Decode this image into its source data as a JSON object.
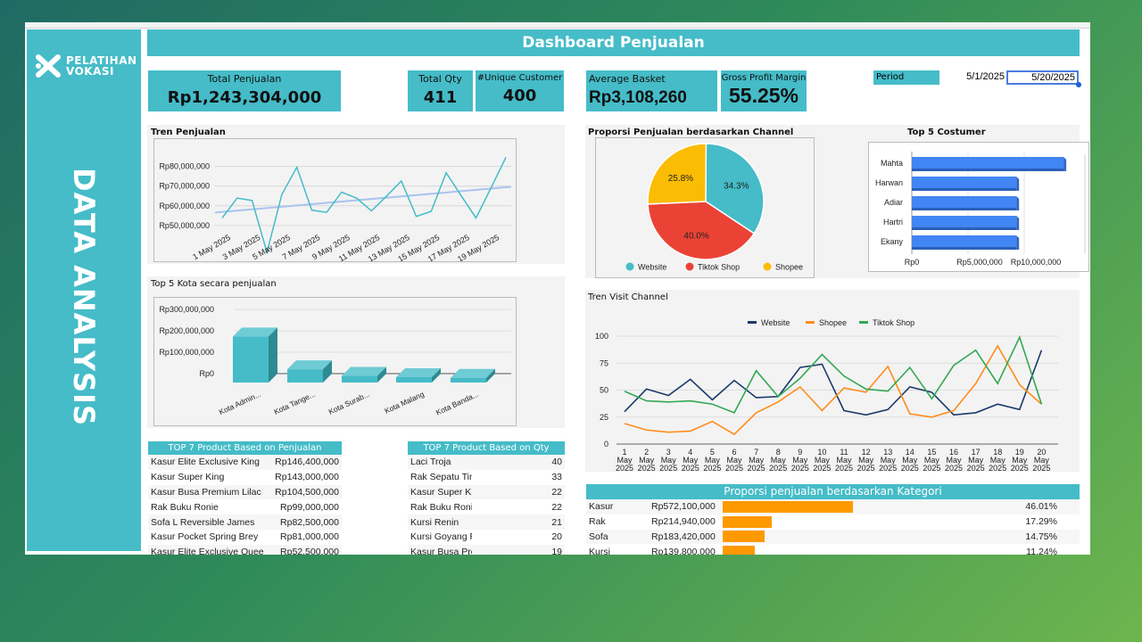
{
  "sidebar": {
    "logo_text_1": "PELATIHAN",
    "logo_text_2": "VOKASI",
    "vertical_title": "DATA ANALYSIS"
  },
  "header": {
    "title": "Dashboard Penjualan"
  },
  "kpis": {
    "total_penjualan": {
      "label": "Total Penjualan",
      "value": "Rp1,243,304,000"
    },
    "total_qty": {
      "label": "Total Qty",
      "value": "411"
    },
    "unique_customer": {
      "label": "#Unique Customer",
      "value": "400"
    },
    "average_basket": {
      "label": "Average Basket",
      "value": "Rp3,108,260"
    },
    "gross_profit_margin": {
      "label": "Gross Profit Margin",
      "value": "55.25%"
    }
  },
  "period": {
    "label": "Period",
    "start": "5/1/2025",
    "end": "5/20/2025"
  },
  "colors": {
    "teal": "#45bcc8",
    "website": "#45bcc8",
    "tiktok": "#ea4335",
    "shopee": "#fbbc04",
    "bar_blue": "#4285f4",
    "navy": "#1a3a6b",
    "orange": "#ff8c1a",
    "green": "#34a853",
    "category_bar": "#ff9900"
  },
  "chart_data": [
    {
      "id": "tren_penjualan",
      "type": "line",
      "title": "Tren Penjualan",
      "trendline": true,
      "x": [
        "1 May 2025",
        "2 May 2025",
        "3 May 2025",
        "4 May 2025",
        "5 May 2025",
        "6 May 2025",
        "7 May 2025",
        "8 May 2025",
        "9 May 2025",
        "10 May 2025",
        "11 May 2025",
        "12 May 2025",
        "13 May 2025",
        "14 May 2025",
        "15 May 2025",
        "16 May 2025",
        "17 May 2025",
        "18 May 2025",
        "19 May 2025",
        "20 May 2025"
      ],
      "xtick_labels": [
        "1 May 2025",
        "3 May 2025",
        "5 May 2025",
        "7 May 2025",
        "9 May 2025",
        "11 May 2025",
        "13 May 2025",
        "15 May 2025",
        "17 May 2025",
        "19 May 2025"
      ],
      "values": [
        53800000,
        63900000,
        62700000,
        36400000,
        65800000,
        79600000,
        57800000,
        56700000,
        66900000,
        63900000,
        57400000,
        64800000,
        72600000,
        54600000,
        57200000,
        76800000,
        65200000,
        53800000,
        69000000,
        84600000
      ],
      "ytick_labels": [
        "Rp50,000,000",
        "Rp60,000,000",
        "Rp70,000,000",
        "Rp80,000,000"
      ],
      "ylim": [
        30000000,
        88000000
      ],
      "grid": true
    },
    {
      "id": "top5_kota",
      "type": "bar",
      "title": "Top 5 Kota secara penjualan",
      "categories": [
        "Kota Admin...",
        "Kota Tange...",
        "Kota Surab...",
        "Kota Malang",
        "Kota Banda..."
      ],
      "values": [
        215000000,
        62000000,
        31000000,
        25000000,
        22000000
      ],
      "ytick_labels": [
        "Rp0",
        "Rp100,000,000",
        "Rp200,000,000",
        "Rp300,000,000"
      ],
      "ylim": [
        0,
        300000000
      ],
      "grid": true
    },
    {
      "id": "proporsi_channel",
      "type": "pie",
      "title": "Proporsi Penjualan berdasarkan Channel",
      "slices": [
        {
          "name": "Website",
          "value": 34.3,
          "label": "34.3%"
        },
        {
          "name": "Tiktok Shop",
          "value": 40.0,
          "label": "40.0%"
        },
        {
          "name": "Shopee",
          "value": 25.8,
          "label": "25.8%"
        }
      ],
      "legend": "bottom"
    },
    {
      "id": "top5_customer",
      "type": "bar",
      "orientation": "horizontal",
      "title": "Top 5 Costumer",
      "categories": [
        "Mahta",
        "Harwan",
        "Adiar",
        "Hartri",
        "Ekany"
      ],
      "values": [
        13500000,
        9300000,
        9300000,
        9300000,
        9300000
      ],
      "xtick_labels": [
        "Rp0",
        "Rp5,000,000",
        "Rp10,000,000"
      ],
      "xlim": [
        0,
        14000000
      ],
      "grid": true
    },
    {
      "id": "tren_visit",
      "type": "line",
      "title": "Tren Visit Channel",
      "legend": "top",
      "x": [
        "1 May 2025",
        "2 May 2025",
        "3 May 2025",
        "4 May 2025",
        "5 May 2025",
        "6 May 2025",
        "7 May 2025",
        "8 May 2025",
        "9 May 2025",
        "10 May 2025",
        "11 May 2025",
        "12 May 2025",
        "13 May 2025",
        "14 May 2025",
        "15 May 2025",
        "16 May 2025",
        "17 May 2025",
        "18 May 2025",
        "19 May 2025",
        "20 May 2025"
      ],
      "series": [
        {
          "name": "Website",
          "values": [
            30,
            51,
            45,
            60,
            41,
            59,
            43,
            44,
            71,
            74,
            31,
            27,
            32,
            53,
            48,
            27,
            29,
            37,
            32,
            87
          ]
        },
        {
          "name": "Shopee",
          "values": [
            19,
            13,
            11,
            12,
            21,
            9,
            29,
            39,
            53,
            31,
            52,
            48,
            72,
            28,
            25,
            31,
            56,
            91,
            55,
            37
          ]
        },
        {
          "name": "Tiktok Shop",
          "values": [
            49,
            40,
            39,
            40,
            37,
            29,
            68,
            44,
            61,
            83,
            63,
            51,
            49,
            71,
            42,
            73,
            87,
            56,
            99,
            37
          ]
        }
      ],
      "ytick_labels": [
        "0",
        "25",
        "50",
        "75",
        "100"
      ],
      "ylim": [
        0,
        100
      ],
      "grid": true
    }
  ],
  "top_sales": {
    "header": "TOP 7 Product Based on Penjualan",
    "rows": [
      {
        "name": "Kasur Elite Exclusive King",
        "value": "Rp146,400,000"
      },
      {
        "name": "Kasur Super King",
        "value": "Rp143,000,000"
      },
      {
        "name": "Kasur Busa Premium Lilac",
        "value": "Rp104,500,000"
      },
      {
        "name": "Rak Buku Ronie",
        "value": "Rp99,000,000"
      },
      {
        "name": "Sofa L Reversible James",
        "value": "Rp82,500,000"
      },
      {
        "name": "Kasur Pocket Spring Brey",
        "value": "Rp81,000,000"
      },
      {
        "name": "Kasur Elite Exclusive Quee",
        "value": "Rp52,500,000"
      }
    ]
  },
  "top_qty": {
    "header": "TOP 7 Product Based on Qty",
    "rows": [
      {
        "name": "Laci Troja",
        "value": "40"
      },
      {
        "name": "Rak Sepatu Tim",
        "value": "33"
      },
      {
        "name": "Kasur Super Kin",
        "value": "22"
      },
      {
        "name": "Rak Buku Ronie",
        "value": "22"
      },
      {
        "name": "Kursi Renin",
        "value": "21"
      },
      {
        "name": "Kursi Goyang Ri",
        "value": "20"
      },
      {
        "name": "Kasur Busa Pre",
        "value": "19"
      }
    ]
  },
  "kategori": {
    "header": "Proporsi penjualan berdasarkan Kategori",
    "rows": [
      {
        "name": "Kasur",
        "value": "Rp572,100,000",
        "pct": "46.01%",
        "share": 46.01
      },
      {
        "name": "Rak",
        "value": "Rp214,940,000",
        "pct": "17.29%",
        "share": 17.29
      },
      {
        "name": "Sofa",
        "value": "Rp183,420,000",
        "pct": "14.75%",
        "share": 14.75
      },
      {
        "name": "Kursi",
        "value": "Rp139,800,000",
        "pct": "11.24%",
        "share": 11.24
      }
    ]
  }
}
